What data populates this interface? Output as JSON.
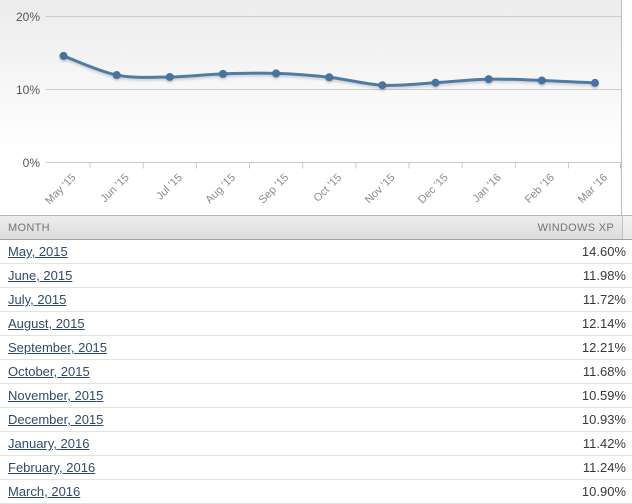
{
  "chart_data": {
    "type": "line",
    "title": "",
    "xlabel": "",
    "ylabel": "",
    "categories": [
      "May '15",
      "Jun '15",
      "Jul '15",
      "Aug '15",
      "Sep '15",
      "Oct '15",
      "Nov '15",
      "Dec '15",
      "Jan '16",
      "Feb '16",
      "Mar '16"
    ],
    "series": [
      {
        "name": "Windows XP",
        "values": [
          14.6,
          11.98,
          11.72,
          12.14,
          12.21,
          11.68,
          10.59,
          10.93,
          11.42,
          11.24,
          10.9
        ]
      }
    ],
    "ylim": [
      0,
      20
    ],
    "yticks": [
      {
        "value": 0,
        "label": "0%"
      },
      {
        "value": 10,
        "label": "10%"
      },
      {
        "value": 20,
        "label": "20%"
      }
    ],
    "grid": true,
    "legend_position": "none",
    "colors": {
      "line": "#4f7ca6",
      "marker": "#47739e",
      "grid": "#cccccc",
      "tick": "#c8c8c8",
      "x_label": "#8c8c8c",
      "y_label": "#555555"
    }
  },
  "table": {
    "columns": [
      "MONTH",
      "WINDOWS XP"
    ],
    "rows": [
      {
        "month": "May, 2015",
        "value": "14.60%"
      },
      {
        "month": "June, 2015",
        "value": "11.98%"
      },
      {
        "month": "July, 2015",
        "value": "11.72%"
      },
      {
        "month": "August, 2015",
        "value": "12.14%"
      },
      {
        "month": "September, 2015",
        "value": "12.21%"
      },
      {
        "month": "October, 2015",
        "value": "11.68%"
      },
      {
        "month": "November, 2015",
        "value": "10.59%"
      },
      {
        "month": "December, 2015",
        "value": "10.93%"
      },
      {
        "month": "January, 2016",
        "value": "11.42%"
      },
      {
        "month": "February, 2016",
        "value": "11.24%"
      },
      {
        "month": "March, 2016",
        "value": "10.90%"
      }
    ]
  }
}
